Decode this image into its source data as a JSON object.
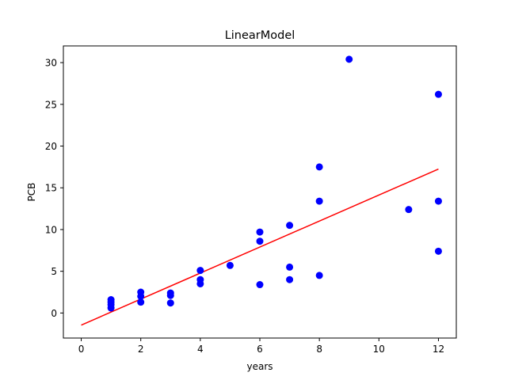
{
  "chart_data": {
    "type": "scatter",
    "title": "LinearModel",
    "xlabel": "years",
    "ylabel": "PCB",
    "xlim": [
      -0.6,
      12.6
    ],
    "ylim": [
      -3.0,
      32.0
    ],
    "xticks": [
      0,
      2,
      4,
      6,
      8,
      10,
      12
    ],
    "yticks": [
      0,
      5,
      10,
      15,
      20,
      25,
      30
    ],
    "xtick_labels": [
      "0",
      "2",
      "4",
      "6",
      "8",
      "10",
      "12"
    ],
    "ytick_labels": [
      "0",
      "5",
      "10",
      "15",
      "20",
      "25",
      "30"
    ],
    "grid": false,
    "legend": "none",
    "series": [
      {
        "kind": "points",
        "color": "#0000ff",
        "marker": "circle",
        "x": [
          1,
          1,
          1,
          1,
          2,
          2,
          2,
          3,
          3,
          3,
          4,
          4,
          4,
          5,
          6,
          6,
          6,
          7,
          7,
          7,
          8,
          8,
          8,
          9,
          11,
          12,
          12,
          12
        ],
        "y": [
          0.6,
          1.0,
          1.3,
          1.6,
          1.3,
          2.0,
          2.5,
          1.2,
          2.1,
          2.4,
          3.5,
          4.0,
          5.1,
          5.7,
          3.4,
          8.6,
          9.7,
          4.0,
          5.5,
          10.5,
          4.5,
          13.4,
          17.5,
          30.4,
          12.4,
          7.4,
          13.4,
          26.2
        ]
      },
      {
        "kind": "fit-line",
        "color": "#ff0000",
        "x": [
          0,
          12
        ],
        "y": [
          -1.45,
          17.25
        ]
      }
    ]
  }
}
